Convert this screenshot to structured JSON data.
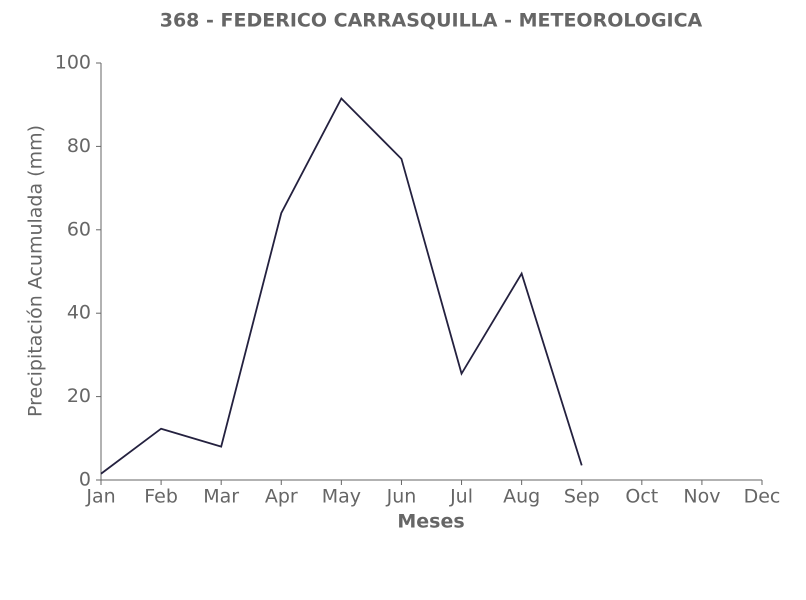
{
  "chart_data": {
    "type": "line",
    "title": "368 - FEDERICO CARRASQUILLA - METEOROLOGICA",
    "x_label": "Meses",
    "y_label": "Precipitación Acumulada (mm)",
    "categories": [
      "Jan",
      "Feb",
      "Mar",
      "Apr",
      "May",
      "Jun",
      "Jul",
      "Aug",
      "Sep",
      "Oct",
      "Nov",
      "Dec"
    ],
    "values": [
      1.5,
      12.3,
      8,
      64,
      91.5,
      77,
      25.5,
      49.5,
      3.5,
      null,
      null,
      null
    ],
    "color": "#24213f",
    "ylim": [
      0,
      100
    ],
    "yticks": [
      0,
      20,
      40,
      60,
      80,
      100
    ],
    "grid": false
  }
}
